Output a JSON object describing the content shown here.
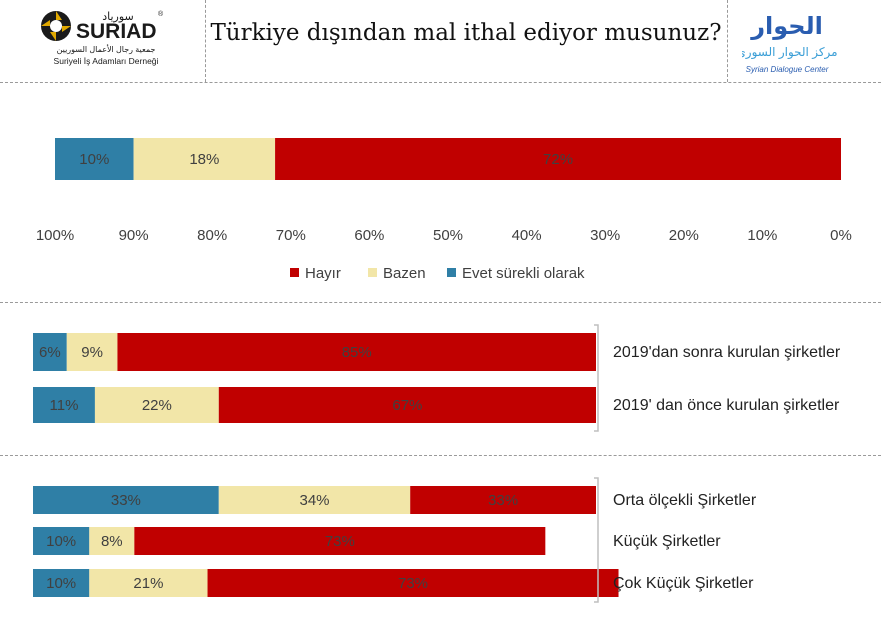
{
  "title": "Türkiye dışından mal ithal ediyor musunuz?",
  "logos": {
    "suriad": {
      "name": "SURIAD",
      "arabic": "سورياد",
      "arabic_sub": "جمعية رجال الأعمال السوريين",
      "subtitle": "Suriyeli İş Adamları Derneği",
      "mark": "®"
    },
    "sdc": {
      "arabic": "الحوار",
      "arabic_sub": "مركز الحوار السوري",
      "subtitle": "Syrian Dialogue Center"
    }
  },
  "colors": {
    "Hayır": "#c00000",
    "Bazen": "#f2e6a8",
    "Evet sürekli olarak": "#2f7fa6"
  },
  "chart_data": [
    {
      "type": "bar",
      "orientation": "horizontal-stacked",
      "series_order": [
        "Evet sürekli olarak",
        "Bazen",
        "Hayır"
      ],
      "categories": [
        ""
      ],
      "series": [
        {
          "name": "Evet sürekli olarak",
          "values": [
            10
          ],
          "labels": [
            "10%"
          ]
        },
        {
          "name": "Bazen",
          "values": [
            18
          ],
          "labels": [
            "18%"
          ]
        },
        {
          "name": "Hayır",
          "values": [
            72
          ],
          "labels": [
            "72%"
          ]
        }
      ],
      "x_axis": {
        "ticks": [
          "100%",
          "90%",
          "80%",
          "70%",
          "60%",
          "50%",
          "40%",
          "30%",
          "20%",
          "10%",
          "0%"
        ],
        "reversed": true
      },
      "legend": {
        "placement": "bottom",
        "entries": [
          "Hayır",
          "Bazen",
          "Evet sürekli olarak"
        ]
      }
    },
    {
      "type": "bar",
      "orientation": "horizontal-stacked",
      "categories": [
        "2019'dan sonra kurulan şirketler",
        "2019' dan önce kurulan şirketler"
      ],
      "series": [
        {
          "name": "Evet sürekli olarak",
          "values": [
            6,
            11
          ],
          "labels": [
            "6%",
            "11%"
          ]
        },
        {
          "name": "Bazen",
          "values": [
            9,
            22
          ],
          "labels": [
            "9%",
            "22%"
          ]
        },
        {
          "name": "Hayır",
          "values": [
            85,
            67
          ],
          "labels": [
            "85%",
            "67%"
          ]
        }
      ]
    },
    {
      "type": "bar",
      "orientation": "horizontal-stacked",
      "categories": [
        "Orta ölçekli Şirketler",
        "Küçük Şirketler",
        "Çok Küçük Şirketler"
      ],
      "series": [
        {
          "name": "Evet sürekli olarak",
          "values": [
            33,
            10,
            10
          ],
          "labels": [
            "33%",
            "10%",
            "10%"
          ]
        },
        {
          "name": "Bazen",
          "values": [
            34,
            8,
            21
          ],
          "labels": [
            "34%",
            "8%",
            "21%"
          ]
        },
        {
          "name": "Hayır",
          "values": [
            33,
            73,
            73
          ],
          "labels": [
            "33%",
            "73%",
            "73%"
          ]
        }
      ]
    }
  ]
}
